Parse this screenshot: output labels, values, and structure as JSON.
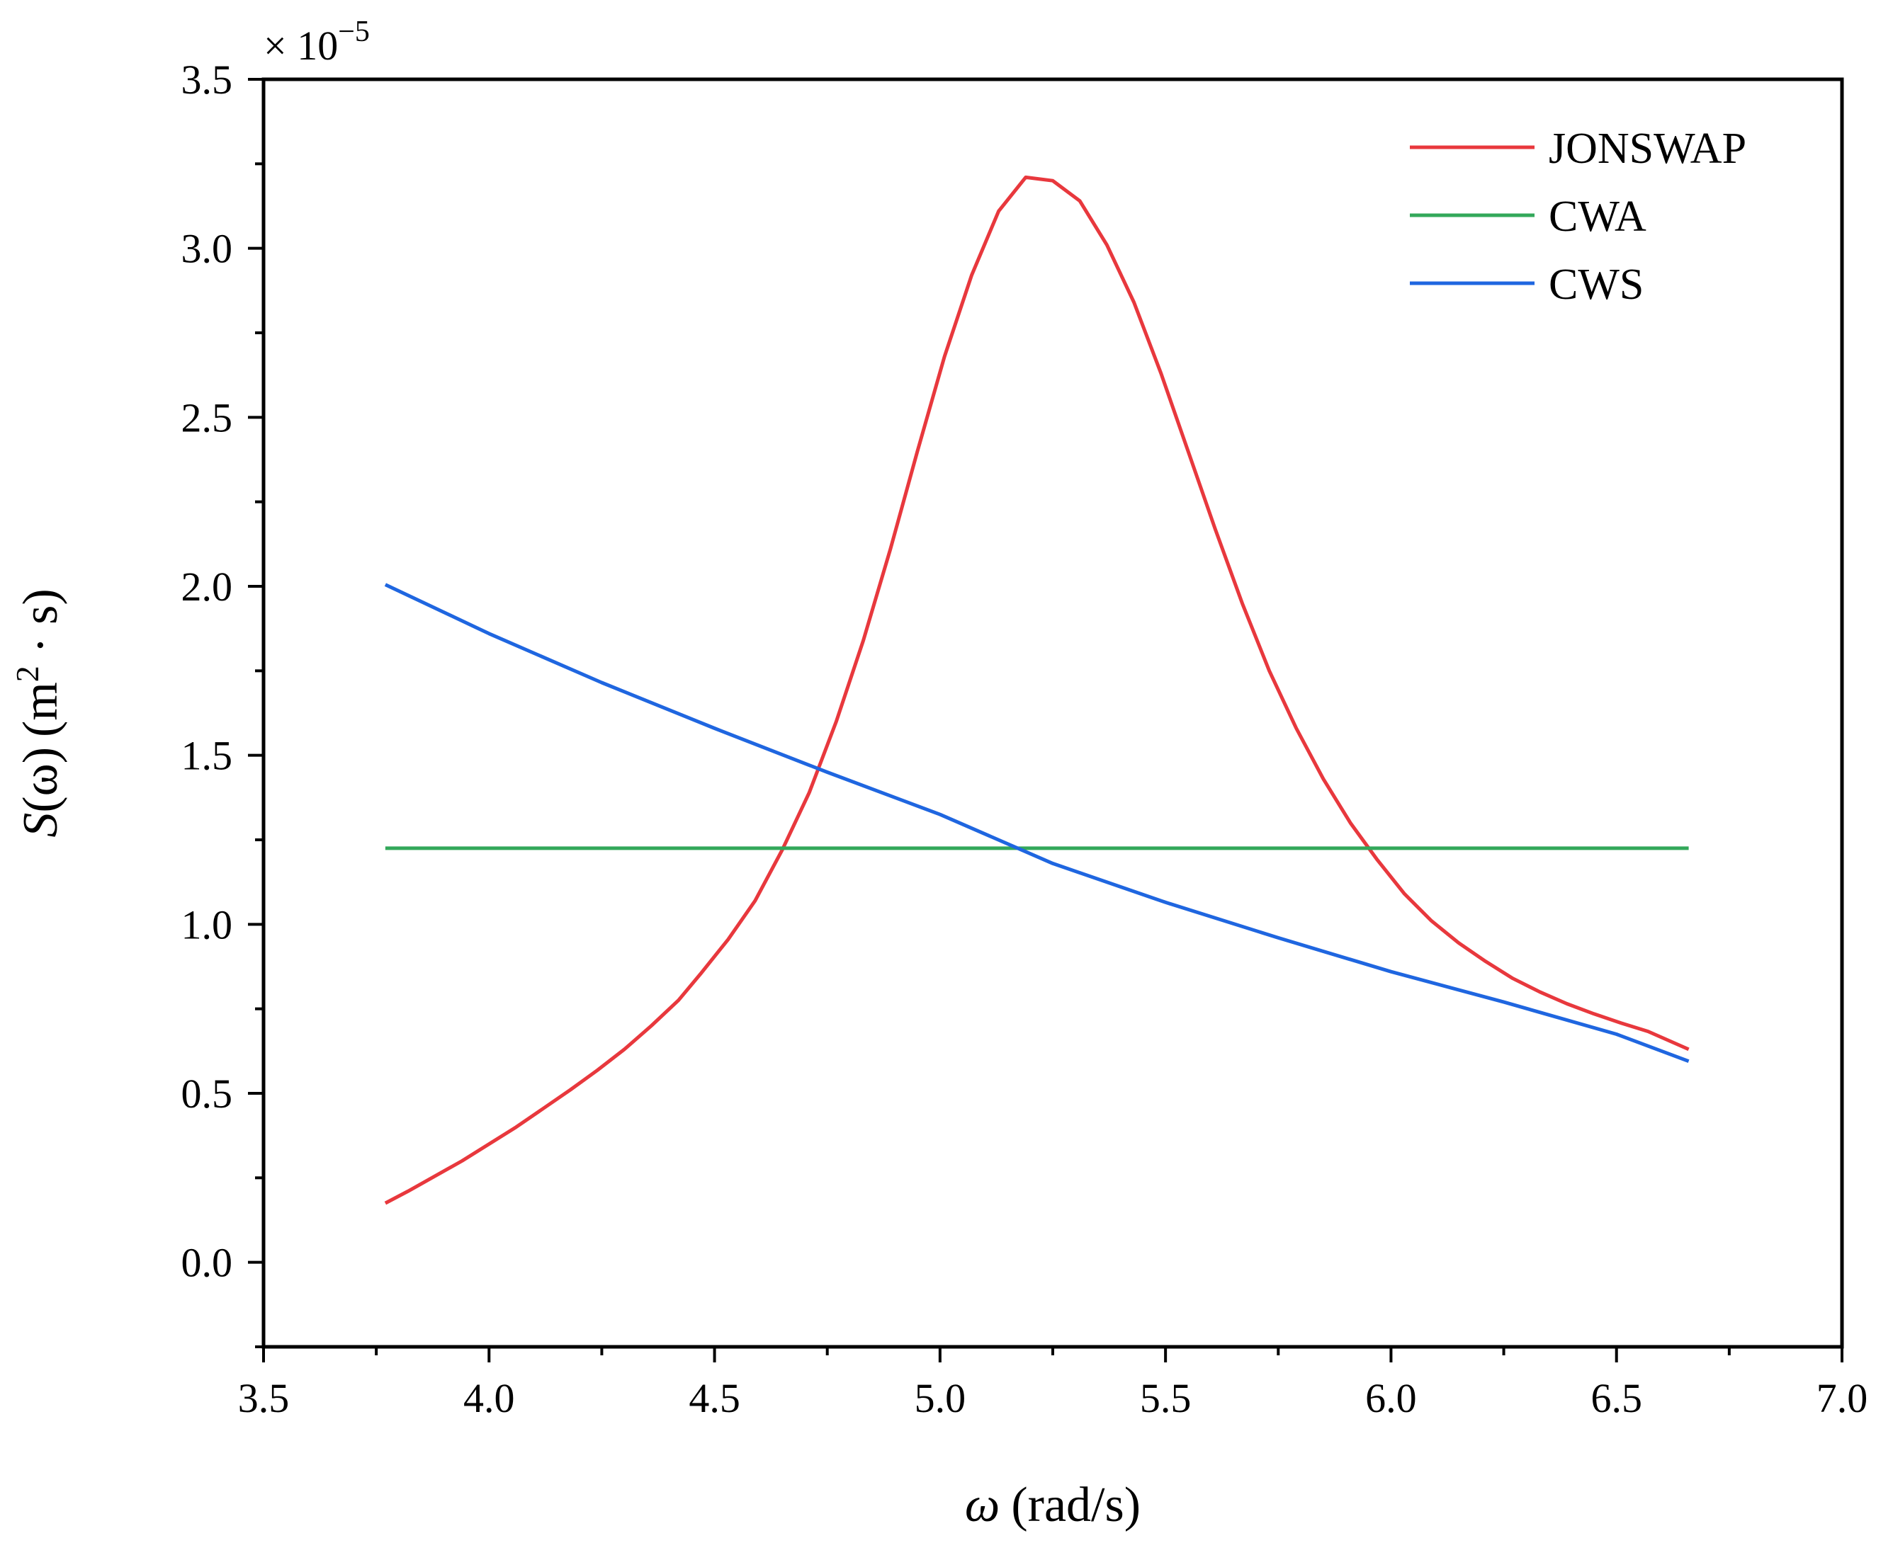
{
  "chart_data": {
    "type": "line",
    "title": "",
    "xlabel": {
      "symbol": "ω",
      "unit": "(rad/s)"
    },
    "ylabel": {
      "symbol": "S",
      "arg": "(ω)",
      "unit_open": "(m",
      "unit_sup": "2",
      "unit_close": " · s)"
    },
    "xlim": [
      3.5,
      7.0
    ],
    "ylim": [
      -0.25,
      3.5
    ],
    "x_ticks": [
      "3.5",
      "4.0",
      "4.5",
      "5.0",
      "5.5",
      "6.0",
      "6.5",
      "7.0"
    ],
    "x_tick_values": [
      3.5,
      4.0,
      4.5,
      5.0,
      5.5,
      6.0,
      6.5,
      7.0
    ],
    "y_ticks": [
      "0.0",
      "0.5",
      "1.0",
      "1.5",
      "2.0",
      "2.5",
      "3.0",
      "3.5"
    ],
    "y_tick_values": [
      0.0,
      0.5,
      1.0,
      1.5,
      2.0,
      2.5,
      3.0,
      3.5
    ],
    "y_multiplier": {
      "base": "× 10",
      "exponent": "−5"
    },
    "legend_position": "top-right",
    "grid": false,
    "series": [
      {
        "name": "JONSWAP",
        "color": "#e8383d",
        "x": [
          3.77,
          3.82,
          3.88,
          3.94,
          4.0,
          4.06,
          4.12,
          4.18,
          4.24,
          4.3,
          4.36,
          4.42,
          4.47,
          4.53,
          4.59,
          4.65,
          4.71,
          4.77,
          4.83,
          4.89,
          4.95,
          5.01,
          5.07,
          5.13,
          5.19,
          5.25,
          5.31,
          5.37,
          5.43,
          5.49,
          5.55,
          5.61,
          5.67,
          5.73,
          5.79,
          5.85,
          5.91,
          5.97,
          6.03,
          6.09,
          6.15,
          6.21,
          6.27,
          6.33,
          6.39,
          6.45,
          6.51,
          6.57,
          6.66
        ],
        "values": [
          0.175,
          0.21,
          0.255,
          0.3,
          0.35,
          0.4,
          0.455,
          0.51,
          0.568,
          0.63,
          0.7,
          0.775,
          0.855,
          0.955,
          1.07,
          1.22,
          1.39,
          1.6,
          1.84,
          2.11,
          2.4,
          2.68,
          2.92,
          3.11,
          3.21,
          3.2,
          3.14,
          3.01,
          2.84,
          2.63,
          2.4,
          2.17,
          1.95,
          1.75,
          1.58,
          1.43,
          1.3,
          1.19,
          1.09,
          1.01,
          0.945,
          0.89,
          0.84,
          0.8,
          0.765,
          0.735,
          0.708,
          0.683,
          0.63
        ]
      },
      {
        "name": "CWA",
        "color": "#33a85a",
        "x": [
          3.77,
          6.66
        ],
        "values": [
          1.225,
          1.225
        ]
      },
      {
        "name": "CWS",
        "color": "#1f66e0",
        "x": [
          3.77,
          4.0,
          4.25,
          4.5,
          4.75,
          5.0,
          5.25,
          5.5,
          5.75,
          6.0,
          6.25,
          6.5,
          6.66
        ],
        "values": [
          2.005,
          1.86,
          1.715,
          1.58,
          1.45,
          1.325,
          1.18,
          1.065,
          0.96,
          0.86,
          0.77,
          0.675,
          0.595
        ]
      }
    ]
  }
}
